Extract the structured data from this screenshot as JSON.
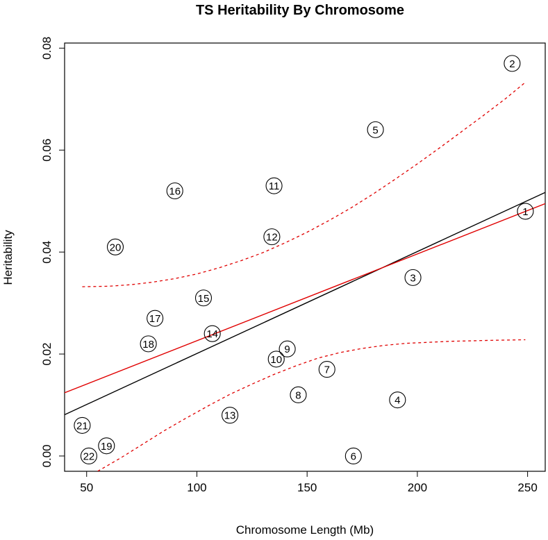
{
  "chart_data": {
    "type": "scatter",
    "title": "TS Heritability By Chromosome",
    "xlabel": "Chromosome Length (Mb)",
    "ylabel": "Heritability",
    "xlim": [
      40,
      258
    ],
    "ylim": [
      -0.003,
      0.081
    ],
    "x_ticks": [
      50,
      100,
      150,
      200,
      250
    ],
    "y_ticks": [
      0.0,
      0.02,
      0.04,
      0.06,
      0.08
    ],
    "x_tick_labels": [
      "50",
      "100",
      "150",
      "200",
      "250"
    ],
    "y_tick_labels": [
      "0.00",
      "0.02",
      "0.04",
      "0.06",
      "0.08"
    ],
    "grid": false,
    "legend": "none",
    "points": [
      {
        "label": "1",
        "x": 249,
        "y": 0.048
      },
      {
        "label": "2",
        "x": 243,
        "y": 0.077
      },
      {
        "label": "3",
        "x": 198,
        "y": 0.035
      },
      {
        "label": "4",
        "x": 191,
        "y": 0.011
      },
      {
        "label": "5",
        "x": 181,
        "y": 0.064
      },
      {
        "label": "6",
        "x": 171,
        "y": 0.0
      },
      {
        "label": "7",
        "x": 159,
        "y": 0.017
      },
      {
        "label": "8",
        "x": 146,
        "y": 0.012
      },
      {
        "label": "9",
        "x": 141,
        "y": 0.021
      },
      {
        "label": "10",
        "x": 136,
        "y": 0.019
      },
      {
        "label": "11",
        "x": 135,
        "y": 0.053
      },
      {
        "label": "12",
        "x": 134,
        "y": 0.043
      },
      {
        "label": "13",
        "x": 115,
        "y": 0.008
      },
      {
        "label": "14",
        "x": 107,
        "y": 0.024
      },
      {
        "label": "15",
        "x": 103,
        "y": 0.031
      },
      {
        "label": "16",
        "x": 90,
        "y": 0.052
      },
      {
        "label": "17",
        "x": 81,
        "y": 0.027
      },
      {
        "label": "18",
        "x": 78,
        "y": 0.022
      },
      {
        "label": "19",
        "x": 59,
        "y": 0.002
      },
      {
        "label": "20",
        "x": 63,
        "y": 0.041
      },
      {
        "label": "21",
        "x": 48,
        "y": 0.006
      },
      {
        "label": "22",
        "x": 51,
        "y": 0.0
      }
    ],
    "lines": [
      {
        "color": "#000000",
        "style": "solid",
        "x": [
          40,
          258
        ],
        "y": [
          0.0081,
          0.0517
        ]
      },
      {
        "color": "#e00000",
        "style": "solid",
        "x": [
          40,
          258
        ],
        "y": [
          0.0124,
          0.0495
        ]
      }
    ],
    "bands": [
      {
        "color": "#e00000",
        "style": "dashed",
        "x": [
          48,
          60,
          70,
          80,
          90,
          100,
          110,
          120,
          130,
          140,
          150,
          160,
          170,
          180,
          190,
          200,
          210,
          220,
          230,
          240,
          249
        ],
        "y": [
          0.0332,
          0.0333,
          0.0336,
          0.0341,
          0.0348,
          0.0357,
          0.0369,
          0.0383,
          0.0399,
          0.0418,
          0.0439,
          0.0462,
          0.0487,
          0.0514,
          0.0543,
          0.0573,
          0.0604,
          0.0636,
          0.0668,
          0.0701,
          0.0733
        ]
      },
      {
        "color": "#e00000",
        "style": "dashed",
        "x": [
          55,
          65,
          75,
          85,
          95,
          105,
          115,
          125,
          135,
          145,
          155,
          165,
          175,
          185,
          195,
          205,
          215,
          225,
          235,
          249
        ],
        "y": [
          -0.003,
          -0.0005,
          0.0022,
          0.0049,
          0.0074,
          0.0098,
          0.0121,
          0.0141,
          0.016,
          0.0177,
          0.0192,
          0.0203,
          0.0211,
          0.0217,
          0.0221,
          0.0223,
          0.0225,
          0.0226,
          0.0227,
          0.0228
        ]
      }
    ]
  }
}
